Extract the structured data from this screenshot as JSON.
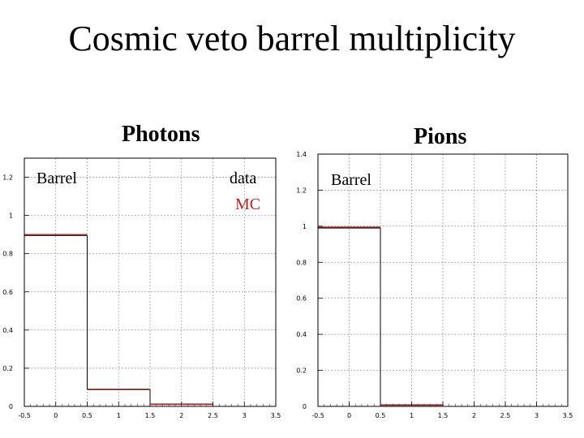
{
  "title": "Cosmic veto barrel multiplicity",
  "colors": {
    "data": "#000000",
    "mc": "#b22222",
    "grid": "#808080"
  },
  "chart_data": [
    {
      "type": "bar",
      "title": "Photons",
      "subtitle": "Barrel",
      "legend": [
        "data",
        "MC"
      ],
      "legend_placement": "top-right",
      "xlim": [
        -0.5,
        3.5
      ],
      "ylim": [
        0,
        1.3
      ],
      "xticks": [
        -0.5,
        0,
        0.5,
        1,
        1.5,
        2,
        2.5,
        3,
        3.5
      ],
      "xticklabels": [
        "-0.5",
        "0",
        "0.5",
        "1",
        "1.5",
        "2",
        "2.5",
        "3",
        "3.5"
      ],
      "yticks": [
        0,
        0.2,
        0.4,
        0.6,
        0.8,
        1,
        1.2
      ],
      "yticklabels": [
        "0",
        "0.2",
        "0.4",
        "0.6",
        "0.8",
        "1",
        "1.2"
      ],
      "bin_edges": [
        -0.5,
        0.5,
        1.5,
        2.5
      ],
      "grid": true,
      "series": [
        {
          "name": "data",
          "values": [
            0.895,
            0.088,
            0.012
          ]
        },
        {
          "name": "MC",
          "values": [
            0.9,
            0.09,
            0.01
          ]
        }
      ]
    },
    {
      "type": "bar",
      "title": "Pions",
      "subtitle": "Barrel",
      "legend_placement": "top-left",
      "xlim": [
        -0.5,
        3.5
      ],
      "ylim": [
        0,
        1.4
      ],
      "xticks": [
        -0.5,
        0,
        0.5,
        1,
        1.5,
        2,
        2.5,
        3,
        3.5
      ],
      "xticklabels": [
        "-0.5",
        "0",
        "0.5",
        "1",
        "1.5",
        "2",
        "2.5",
        "3",
        "3.5"
      ],
      "yticks": [
        0,
        0.2,
        0.4,
        0.6,
        0.8,
        1,
        1.2,
        1.4
      ],
      "yticklabels": [
        "0",
        "0.2",
        "0.4",
        "0.6",
        "0.8",
        "1",
        "1.2",
        "1.4"
      ],
      "bin_edges": [
        -0.5,
        0.5,
        1.5
      ],
      "grid": true,
      "series": [
        {
          "name": "data",
          "values": [
            0.99,
            0.008
          ]
        },
        {
          "name": "MC",
          "values": [
            0.995,
            0.006
          ]
        }
      ]
    }
  ]
}
